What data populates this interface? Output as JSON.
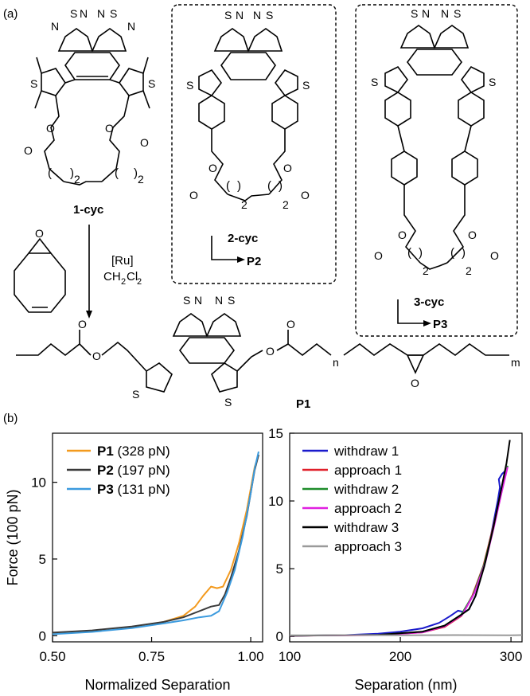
{
  "panel_a": {
    "panel_label": "(a)",
    "compounds": {
      "c1": "1-cyc",
      "c2": "2-cyc",
      "c3": "3-cyc",
      "p1": "P1",
      "p2": "P2",
      "p3": "P3"
    },
    "reagent": {
      "catalyst": "[Ru]",
      "solvent_main": "CH",
      "solvent_sub1": "2",
      "solvent_cl": "Cl",
      "solvent_sub2": "2"
    },
    "atoms": {
      "S": "S",
      "N": "N",
      "O": "O"
    },
    "subscripts": {
      "two": "2",
      "n": "n",
      "m": "m"
    },
    "paren_open": "(",
    "paren_close": ")"
  },
  "panel_b": {
    "panel_label": "(b)"
  },
  "chart_data": [
    {
      "type": "line",
      "xlabel": "Normalized Separation",
      "ylabel": "Force (100 pN)",
      "xlim": [
        0.5,
        1.03
      ],
      "ylim": [
        -0.4,
        13.2
      ],
      "xticks": [
        0.5,
        0.75,
        1.0
      ],
      "xtick_labels": [
        "0.50",
        "0.75",
        "1.00"
      ],
      "yticks": [
        0,
        5,
        10
      ],
      "ytick_labels": [
        "0",
        "5",
        "10"
      ],
      "legend_position": "top-left",
      "series": [
        {
          "name": "P1",
          "legend_extra": "(328 pN)",
          "color": "#f39a1e",
          "x": [
            0.5,
            0.6,
            0.7,
            0.78,
            0.83,
            0.86,
            0.88,
            0.9,
            0.915,
            0.93,
            0.95,
            0.97,
            0.99,
            1.0,
            1.01,
            1.02
          ],
          "y": [
            0.15,
            0.3,
            0.55,
            0.9,
            1.3,
            1.9,
            2.6,
            3.2,
            3.1,
            3.2,
            4.3,
            6.0,
            8.2,
            9.6,
            11.0,
            11.8
          ]
        },
        {
          "name": "P2",
          "legend_extra": "(197 pN)",
          "color": "#3a3a3a",
          "x": [
            0.5,
            0.6,
            0.7,
            0.78,
            0.83,
            0.87,
            0.9,
            0.92,
            0.935,
            0.95,
            0.97,
            0.99,
            1.0,
            1.01,
            1.02
          ],
          "y": [
            0.2,
            0.35,
            0.6,
            0.9,
            1.2,
            1.6,
            1.9,
            2.0,
            2.7,
            3.8,
            5.5,
            7.8,
            9.3,
            10.8,
            11.8
          ]
        },
        {
          "name": "P3",
          "legend_extra": "(131 pN)",
          "color": "#3b9ade",
          "x": [
            0.5,
            0.6,
            0.7,
            0.78,
            0.83,
            0.87,
            0.9,
            0.92,
            0.94,
            0.96,
            0.98,
            1.0,
            1.01,
            1.02
          ],
          "y": [
            0.1,
            0.25,
            0.5,
            0.8,
            1.0,
            1.2,
            1.3,
            1.6,
            2.8,
            4.3,
            6.5,
            9.3,
            10.9,
            12.0
          ]
        }
      ]
    },
    {
      "type": "line",
      "xlabel": "Separation (nm)",
      "ylabel": "",
      "xlim": [
        100,
        310
      ],
      "ylim": [
        -0.4,
        15
      ],
      "xticks": [
        100,
        200,
        300
      ],
      "xtick_labels": [
        "100",
        "200",
        "300"
      ],
      "yticks": [
        0,
        5,
        10,
        15
      ],
      "ytick_labels": [
        "0",
        "5",
        "10",
        "15"
      ],
      "legend_position": "top-left",
      "series": [
        {
          "name": "withdraw 1",
          "color": "#1a1acc",
          "x": [
            100,
            150,
            180,
            200,
            220,
            235,
            245,
            252,
            258,
            262,
            268,
            275,
            282,
            288,
            290,
            289,
            292,
            296
          ],
          "y": [
            0.05,
            0.1,
            0.2,
            0.35,
            0.6,
            1.0,
            1.5,
            1.9,
            1.8,
            2.0,
            3.0,
            5.0,
            7.5,
            10.0,
            11.0,
            11.6,
            12.0,
            12.3
          ]
        },
        {
          "name": "approach 1",
          "color": "#e0202a",
          "x": [
            100,
            180,
            220,
            240,
            255,
            265,
            275,
            283,
            290,
            296
          ],
          "y": [
            0.05,
            0.1,
            0.3,
            0.7,
            1.5,
            3.0,
            5.2,
            7.8,
            10.2,
            12.4
          ]
        },
        {
          "name": "withdraw 2",
          "color": "#1e8c2a",
          "x": [
            100,
            180,
            220,
            240,
            255,
            266,
            276,
            284,
            291,
            297
          ],
          "y": [
            0.05,
            0.12,
            0.35,
            0.8,
            1.6,
            3.1,
            5.4,
            8.0,
            10.5,
            12.6
          ]
        },
        {
          "name": "approach 2",
          "color": "#e020e0",
          "x": [
            100,
            180,
            220,
            240,
            256,
            267,
            277,
            285,
            292,
            297
          ],
          "y": [
            0.05,
            0.1,
            0.3,
            0.75,
            1.6,
            3.2,
            5.5,
            8.2,
            10.8,
            12.5
          ]
        },
        {
          "name": "withdraw 3",
          "color": "#000000",
          "x": [
            100,
            180,
            220,
            240,
            255,
            262,
            268,
            276,
            284,
            291,
            296,
            299
          ],
          "y": [
            0.05,
            0.12,
            0.35,
            0.8,
            1.6,
            2.0,
            3.0,
            5.2,
            8.0,
            10.8,
            12.8,
            14.5
          ]
        },
        {
          "name": "approach 3",
          "color": "#9a9a9a",
          "x": [
            100,
            150,
            200,
            250,
            300,
            310
          ],
          "y": [
            0.08,
            0.1,
            0.08,
            0.1,
            0.08,
            0.1
          ]
        }
      ]
    }
  ]
}
